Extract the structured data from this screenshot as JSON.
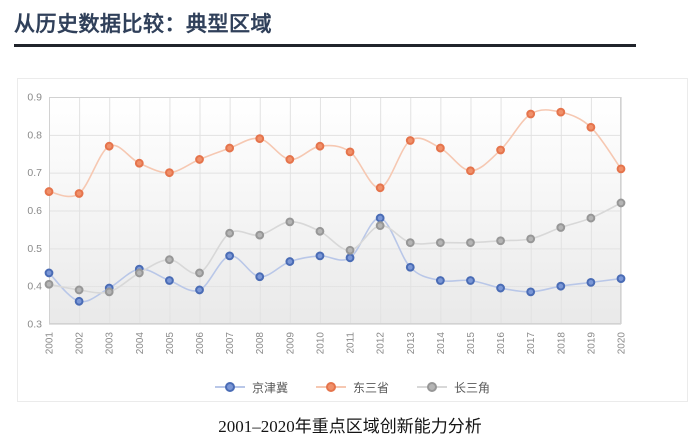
{
  "page": {
    "title": "从历史数据比较：典型区域",
    "caption": "2001–2020年重点区域创新能力分析"
  },
  "chart_data": {
    "type": "line",
    "smooth": true,
    "grid": true,
    "legend_position": "bottom",
    "x": [
      "2001",
      "2002",
      "2003",
      "2004",
      "2005",
      "2006",
      "2007",
      "2008",
      "2009",
      "2010",
      "2011",
      "2012",
      "2013",
      "2014",
      "2015",
      "2016",
      "2017",
      "2018",
      "2019",
      "2020"
    ],
    "ylim": [
      0.3,
      0.9
    ],
    "yticks": [
      0.3,
      0.4,
      0.5,
      0.6,
      0.7,
      0.8,
      0.9
    ],
    "series": [
      {
        "name": "京津冀",
        "marker_fill": "#7b97d6",
        "marker_stroke": "#4a6cb5",
        "line_color": "#b9c7e8",
        "values": [
          0.435,
          0.36,
          0.395,
          0.445,
          0.415,
          0.39,
          0.48,
          0.425,
          0.465,
          0.48,
          0.475,
          0.58,
          0.45,
          0.415,
          0.415,
          0.395,
          0.385,
          0.4,
          0.41,
          0.42
        ]
      },
      {
        "name": "东三省",
        "marker_fill": "#f0906a",
        "marker_stroke": "#e5744c",
        "line_color": "#f6c8b2",
        "values": [
          0.65,
          0.645,
          0.77,
          0.725,
          0.7,
          0.735,
          0.765,
          0.79,
          0.735,
          0.77,
          0.755,
          0.66,
          0.785,
          0.765,
          0.705,
          0.76,
          0.855,
          0.86,
          0.82,
          0.71
        ]
      },
      {
        "name": "长三角",
        "marker_fill": "#b5b5b5",
        "marker_stroke": "#979797",
        "line_color": "#d8d8d8",
        "values": [
          0.405,
          0.39,
          0.385,
          0.435,
          0.47,
          0.435,
          0.54,
          0.535,
          0.57,
          0.545,
          0.495,
          0.56,
          0.515,
          0.515,
          0.515,
          0.52,
          0.525,
          0.555,
          0.58,
          0.62
        ]
      }
    ],
    "axis_label_color": "#8a8a8a",
    "grid_color": "#e2e2e2",
    "spine_color": "#d2d2d2",
    "plot_bg_top": "#ffffff",
    "plot_bg_bottom": "#e9e9e9"
  }
}
